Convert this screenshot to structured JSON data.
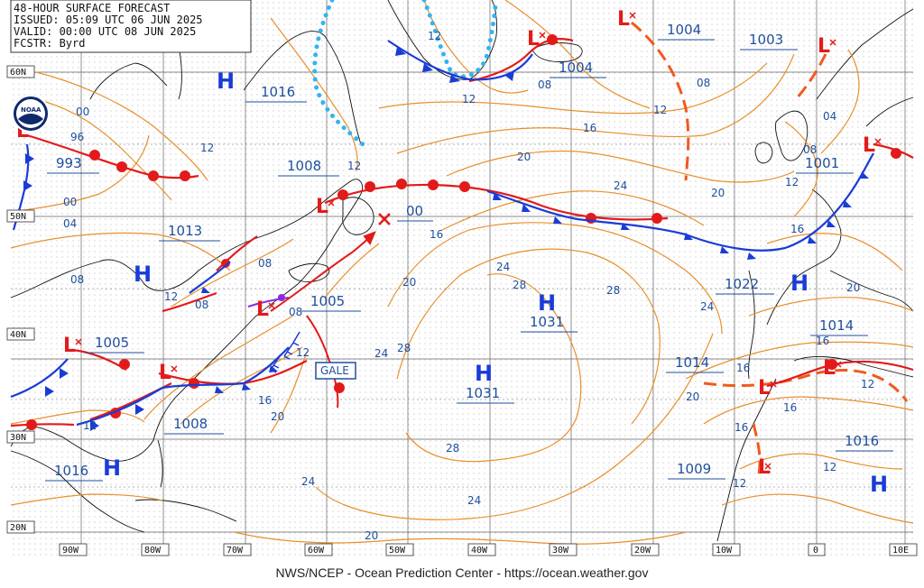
{
  "header": {
    "line1": "48-HOUR SURFACE FORECAST",
    "line2": "ISSUED: 05:09 UTC 06 JUN 2025",
    "line3": "VALID:  00:00 UTC 08 JUN 2025",
    "line4": "FCSTR:  Byrd"
  },
  "footer": "NWS/NCEP - Ocean Prediction Center - https://ocean.weather.gov",
  "logo_text": "NOAA",
  "lat_labels": [
    "60N",
    "50N",
    "40N",
    "30N",
    "20N"
  ],
  "lon_labels": [
    "90W",
    "80W",
    "70W",
    "60W",
    "50W",
    "40W",
    "30W",
    "20W",
    "10W",
    "0",
    "10E"
  ],
  "gale_label": "GALE",
  "pressure_centers": {
    "highs": [
      "H",
      "H",
      "H",
      "H",
      "H",
      "H",
      "H"
    ],
    "lows": [
      "L",
      "L",
      "L",
      "L",
      "L",
      "L",
      "L",
      "L",
      "L",
      "L",
      "L"
    ]
  },
  "pressure_labels": [
    "1016",
    "993",
    "1013",
    "1008",
    "00",
    "1005",
    "1005",
    "1008",
    "1016",
    "1031",
    "1031",
    "1004",
    "1004",
    "1003",
    "1001",
    "1022",
    "1014",
    "1014",
    "1009",
    "1016"
  ],
  "isobar_labels": [
    "00",
    "96",
    "12",
    "00",
    "04",
    "08",
    "12",
    "08",
    "08",
    "12",
    "08",
    "12",
    "16",
    "20",
    "24",
    "28",
    "24",
    "28",
    "20",
    "24",
    "28",
    "24",
    "20",
    "24",
    "28",
    "16",
    "20",
    "24",
    "16",
    "12",
    "08",
    "12",
    "08",
    "04",
    "08",
    "12",
    "20",
    "16",
    "20",
    "16",
    "12",
    "16",
    "16",
    "16",
    "12",
    "12",
    "20",
    "12",
    "20",
    "12"
  ],
  "colors": {
    "cold_front": "#1a3cd6",
    "warm_front": "#e31a1a",
    "isobar": "#e8902c",
    "trough": "#f05a1e",
    "ice_edge": "#33b4f0",
    "label": "#1f4f9e"
  }
}
